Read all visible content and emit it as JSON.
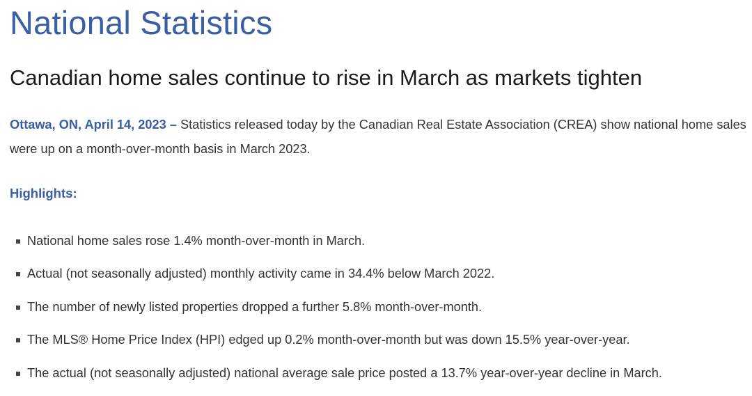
{
  "page_title": "National Statistics",
  "headline": "Canadian home sales continue to rise in March as markets tighten",
  "lede": {
    "dateline": "Ottawa, ON, April 14, 2023 –",
    "text": "Statistics released today by the Canadian Real Estate Association (CREA) show national home sales were up on a month-over-month basis in March 2023."
  },
  "highlights": {
    "heading": "Highlights:",
    "items": [
      "National home sales rose 1.4% month-over-month in March.",
      "Actual (not seasonally adjusted) monthly activity came in 34.4% below March 2022.",
      "The number of newly listed properties dropped a further 5.8% month-over-month.",
      "The MLS® Home Price Index (HPI) edged up 0.2% month-over-month but was down 15.5% year-over-year.",
      "The actual (not seasonally adjusted) national average sale price posted a 13.7% year-over-year decline in March."
    ]
  },
  "colors": {
    "accent": "#3a5ea4",
    "body_text": "#333333",
    "headline_text": "#1a1a1a"
  }
}
